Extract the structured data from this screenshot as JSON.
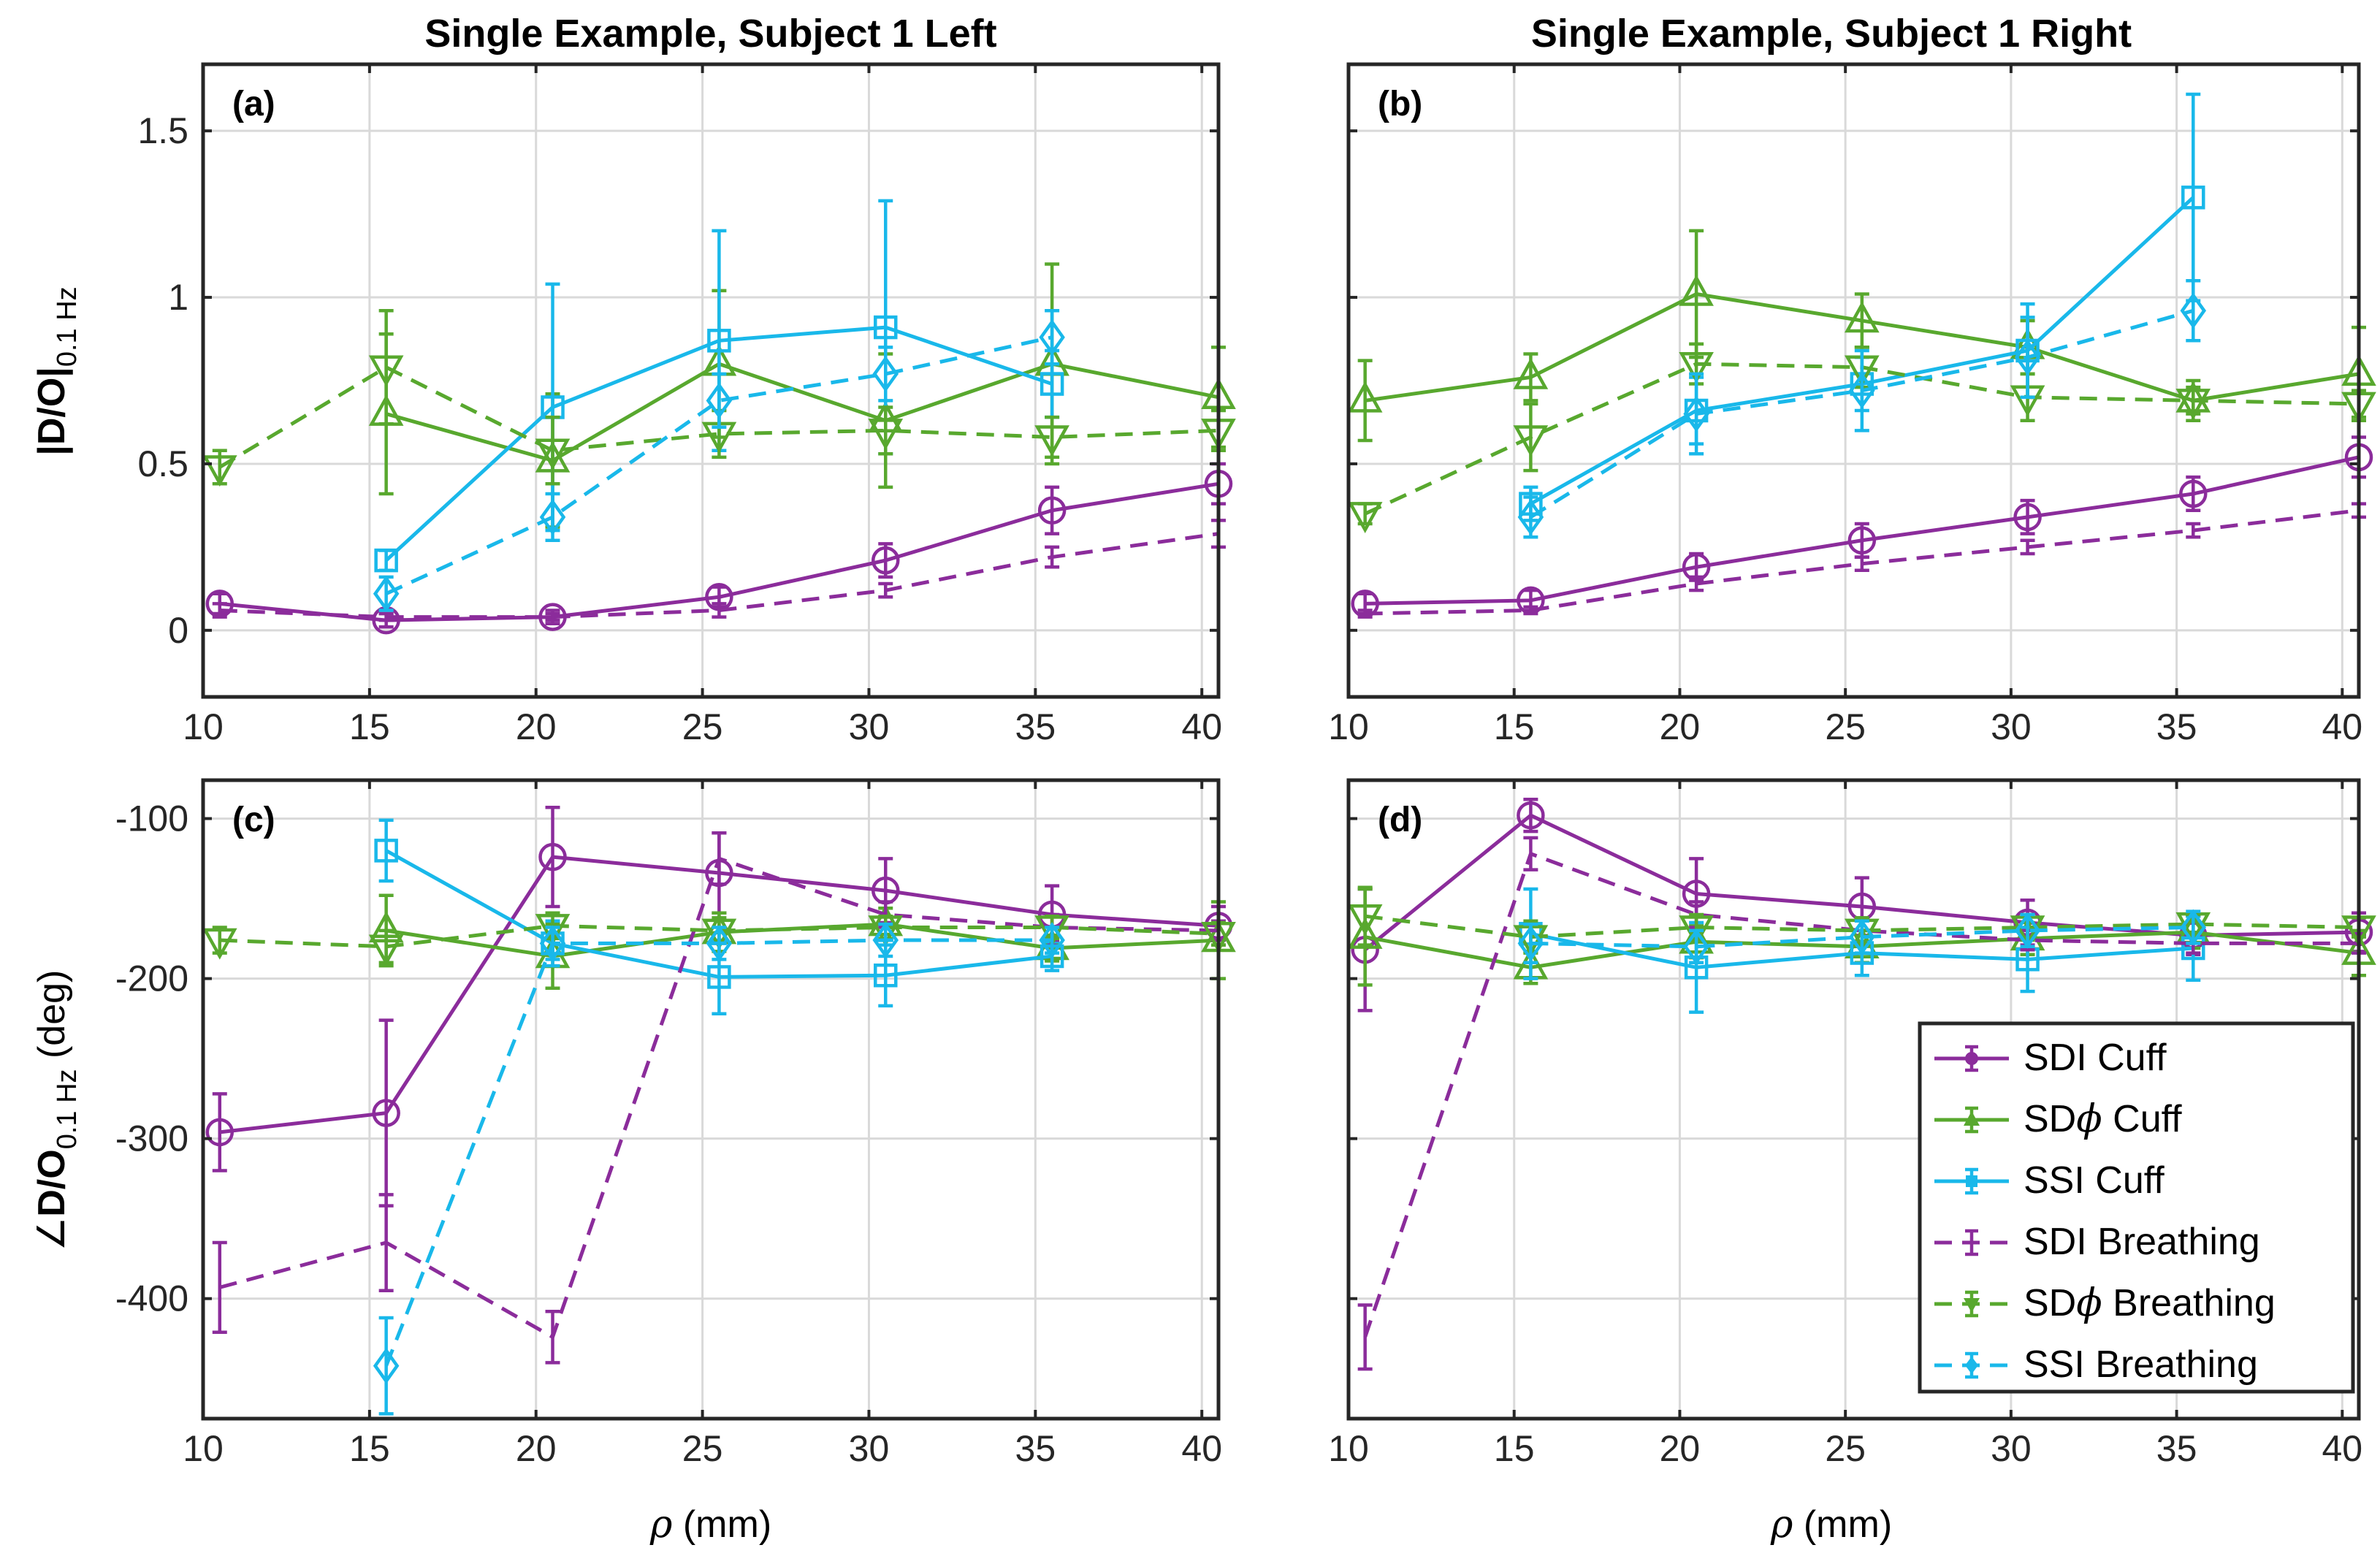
{
  "figure": {
    "x_ticks": [
      "10",
      "15",
      "20",
      "25",
      "30",
      "35",
      "40"
    ],
    "top_y_ticks": [
      "0",
      "0.5",
      "1",
      "1.5"
    ],
    "bottom_y_ticks": [
      "-100",
      "-200",
      "-300",
      "-400"
    ],
    "xlabel": {
      "sym": "ρ",
      "rest": " (mm)"
    },
    "top_ylabel": {
      "main": "|D/O|",
      "sub": "0.1 Hz"
    },
    "bottom_ylabel": {
      "pre": "∠",
      "main": "D/O",
      "sub": "0.1 Hz",
      "post": " (deg)"
    }
  },
  "legend": [
    {
      "label": "SDI Cuff"
    },
    {
      "label_pre": "SD",
      "label_sym": "ϕ",
      "label_post": " Cuff"
    },
    {
      "label": "SSI Cuff"
    },
    {
      "label": "SDI Breathing"
    },
    {
      "label_pre": "SD",
      "label_sym": "ϕ",
      "label_post": " Breathing"
    },
    {
      "label": "SSI Breathing"
    }
  ],
  "colors": {
    "SDI": "#8b2c9b",
    "SDphi": "#58a82e",
    "SSI": "#19b8ea",
    "grid": "#d9d9d9"
  },
  "chart_data": [
    {
      "type": "line",
      "panel": "(a)",
      "title": "Single Example, Subject 1 Left",
      "xlim": [
        10,
        40.5
      ],
      "ylim": [
        -0.2,
        1.7
      ],
      "series": [
        {
          "name": "SDI Cuff",
          "x": [
            10.5,
            15.5,
            20.5,
            25.5,
            30.5,
            35.5,
            40.5
          ],
          "y": [
            0.08,
            0.03,
            0.04,
            0.1,
            0.21,
            0.36,
            0.44
          ],
          "err": [
            0.03,
            0.02,
            0.02,
            0.03,
            0.05,
            0.07,
            0.06
          ]
        },
        {
          "name": "SDφ Cuff",
          "x": [
            15.5,
            20.5,
            25.5,
            30.5,
            35.5,
            40.5
          ],
          "y": [
            0.65,
            0.51,
            0.8,
            0.63,
            0.8,
            0.7
          ],
          "err": [
            0.24,
            0.2,
            0.22,
            0.2,
            0.3,
            0.15
          ]
        },
        {
          "name": "SSI Cuff",
          "x": [
            15.5,
            20.5,
            25.5,
            30.5,
            35.5
          ],
          "y": [
            0.21,
            0.67,
            0.87,
            0.91,
            0.74
          ],
          "err": [
            0.03,
            0.37,
            0.33,
            0.38,
            0.1
          ]
        },
        {
          "name": "SDI Breathing",
          "x": [
            10.5,
            15.5,
            20.5,
            25.5,
            30.5,
            35.5,
            40.5
          ],
          "y": [
            0.06,
            0.04,
            0.04,
            0.06,
            0.12,
            0.22,
            0.29
          ],
          "err": [
            0.02,
            0.01,
            0.01,
            0.02,
            0.02,
            0.03,
            0.04
          ]
        },
        {
          "name": "SDφ Breathing",
          "x": [
            10.5,
            15.5,
            20.5,
            25.5,
            30.5,
            35.5,
            40.5
          ],
          "y": [
            0.49,
            0.79,
            0.54,
            0.59,
            0.6,
            0.58,
            0.6
          ],
          "err": [
            0.05,
            0.17,
            0.1,
            0.07,
            0.07,
            0.06,
            0.06
          ]
        },
        {
          "name": "SSI Breathing",
          "x": [
            15.5,
            20.5,
            25.5,
            30.5,
            35.5
          ],
          "y": [
            0.11,
            0.34,
            0.69,
            0.77,
            0.88
          ],
          "err": [
            0.05,
            0.07,
            0.08,
            0.08,
            0.08
          ]
        }
      ]
    },
    {
      "type": "line",
      "panel": "(b)",
      "title": "Single Example, Subject 1 Right",
      "xlim": [
        10,
        40.5
      ],
      "ylim": [
        -0.2,
        1.7
      ],
      "series": [
        {
          "name": "SDI Cuff",
          "x": [
            10.5,
            15.5,
            20.5,
            25.5,
            30.5,
            35.5,
            40.5
          ],
          "y": [
            0.08,
            0.09,
            0.19,
            0.27,
            0.34,
            0.41,
            0.52
          ],
          "err": [
            0.03,
            0.03,
            0.04,
            0.05,
            0.05,
            0.05,
            0.06
          ]
        },
        {
          "name": "SDφ Cuff",
          "x": [
            10.5,
            15.5,
            20.5,
            25.5,
            30.5,
            35.5,
            40.5
          ],
          "y": [
            0.69,
            0.76,
            1.01,
            0.93,
            0.85,
            0.69,
            0.77
          ],
          "err": [
            0.12,
            0.07,
            0.19,
            0.08,
            0.08,
            0.06,
            0.14
          ]
        },
        {
          "name": "SSI Cuff",
          "x": [
            15.5,
            20.5,
            25.5,
            30.5,
            35.5
          ],
          "y": [
            0.38,
            0.66,
            0.74,
            0.84,
            1.3
          ],
          "err": [
            0.05,
            0.1,
            0.08,
            0.14,
            0.31
          ]
        },
        {
          "name": "SDI Breathing",
          "x": [
            10.5,
            15.5,
            20.5,
            25.5,
            30.5,
            35.5,
            40.5
          ],
          "y": [
            0.05,
            0.06,
            0.14,
            0.2,
            0.25,
            0.3,
            0.36
          ],
          "err": [
            0.01,
            0.01,
            0.02,
            0.02,
            0.02,
            0.02,
            0.02
          ]
        },
        {
          "name": "SDφ Breathing",
          "x": [
            10.5,
            15.5,
            20.5,
            25.5,
            30.5,
            35.5,
            40.5
          ],
          "y": [
            0.35,
            0.58,
            0.8,
            0.79,
            0.7,
            0.69,
            0.68
          ],
          "err": [
            0.03,
            0.1,
            0.06,
            0.06,
            0.07,
            0.04,
            0.04
          ]
        },
        {
          "name": "SSI Breathing",
          "x": [
            15.5,
            20.5,
            25.5,
            30.5,
            35.5
          ],
          "y": [
            0.34,
            0.65,
            0.72,
            0.82,
            0.96
          ],
          "err": [
            0.06,
            0.12,
            0.12,
            0.12,
            0.09
          ]
        }
      ]
    },
    {
      "type": "line",
      "panel": "(c)",
      "xlim": [
        10,
        40.5
      ],
      "ylim": [
        -475,
        -76
      ],
      "series": [
        {
          "name": "SDI Cuff",
          "x": [
            10.5,
            15.5,
            20.5,
            25.5,
            30.5,
            35.5,
            40.5
          ],
          "y": [
            -296,
            -284,
            -124,
            -134,
            -145,
            -160,
            -167
          ],
          "err": [
            24,
            58,
            31,
            25,
            20,
            18,
            12
          ]
        },
        {
          "name": "SDφ Cuff",
          "x": [
            15.5,
            20.5,
            25.5,
            30.5,
            35.5,
            40.5
          ],
          "y": [
            -170,
            -186,
            -171,
            -166,
            -181,
            -176
          ],
          "err": [
            22,
            20,
            12,
            10,
            8,
            24
          ]
        },
        {
          "name": "SSI Cuff",
          "x": [
            15.5,
            20.5,
            25.5,
            30.5,
            35.5
          ],
          "y": [
            -120,
            -178,
            -199,
            -198,
            -186
          ],
          "err": [
            19,
            14,
            23,
            19,
            9
          ]
        },
        {
          "name": "SDI Breathing",
          "x": [
            10.5,
            15.5,
            20.5,
            25.5,
            30.5,
            35.5,
            40.5
          ],
          "y": [
            -393,
            -365,
            -424,
            -125,
            -160,
            -168,
            -170
          ],
          "err": [
            28,
            30,
            16,
            16,
            8,
            8,
            6
          ]
        },
        {
          "name": "SDφ Breathing",
          "x": [
            10.5,
            15.5,
            20.5,
            25.5,
            30.5,
            35.5,
            40.5
          ],
          "y": [
            -176,
            -180,
            -167,
            -170,
            -168,
            -168,
            -172
          ],
          "err": [
            8,
            10,
            8,
            8,
            7,
            7,
            7
          ]
        },
        {
          "name": "SSI Breathing",
          "x": [
            15.5,
            20.5,
            25.5,
            30.5,
            35.5
          ],
          "y": [
            -442,
            -178,
            -178,
            -176,
            -176
          ],
          "err": [
            30,
            10,
            10,
            10,
            8
          ]
        }
      ]
    },
    {
      "type": "line",
      "panel": "(d)",
      "xlim": [
        10,
        40.5
      ],
      "ylim": [
        -475,
        -76
      ],
      "series": [
        {
          "name": "SDI Cuff",
          "x": [
            10.5,
            15.5,
            20.5,
            25.5,
            30.5,
            35.5,
            40.5
          ],
          "y": [
            -182,
            -98,
            -147,
            -155,
            -165,
            -173,
            -171
          ],
          "err": [
            38,
            10,
            22,
            18,
            14,
            12,
            12
          ]
        },
        {
          "name": "SDφ Cuff",
          "x": [
            10.5,
            15.5,
            20.5,
            25.5,
            30.5,
            35.5,
            40.5
          ],
          "y": [
            -174,
            -193,
            -177,
            -180,
            -175,
            -171,
            -184
          ],
          "err": [
            30,
            10,
            10,
            10,
            10,
            10,
            14
          ]
        },
        {
          "name": "SSI Cuff",
          "x": [
            15.5,
            20.5,
            25.5,
            30.5,
            35.5
          ],
          "y": [
            -172,
            -193,
            -184,
            -188,
            -181
          ],
          "err": [
            28,
            28,
            14,
            20,
            20
          ]
        },
        {
          "name": "SDI Breathing",
          "x": [
            10.5,
            15.5,
            20.5,
            25.5,
            30.5,
            35.5,
            40.5
          ],
          "y": [
            -424,
            -122,
            -160,
            -170,
            -176,
            -178,
            -178
          ],
          "err": [
            20,
            10,
            8,
            8,
            6,
            6,
            6
          ]
        },
        {
          "name": "SDφ Breathing",
          "x": [
            10.5,
            15.5,
            20.5,
            25.5,
            30.5,
            35.5,
            40.5
          ],
          "y": [
            -161,
            -174,
            -168,
            -170,
            -168,
            -166,
            -168
          ],
          "err": [
            18,
            10,
            8,
            8,
            8,
            6,
            6
          ]
        },
        {
          "name": "SSI Breathing",
          "x": [
            15.5,
            20.5,
            25.5,
            30.5,
            35.5
          ],
          "y": [
            -178,
            -180,
            -174,
            -170,
            -168
          ],
          "err": [
            12,
            10,
            10,
            10,
            10
          ]
        }
      ]
    }
  ]
}
